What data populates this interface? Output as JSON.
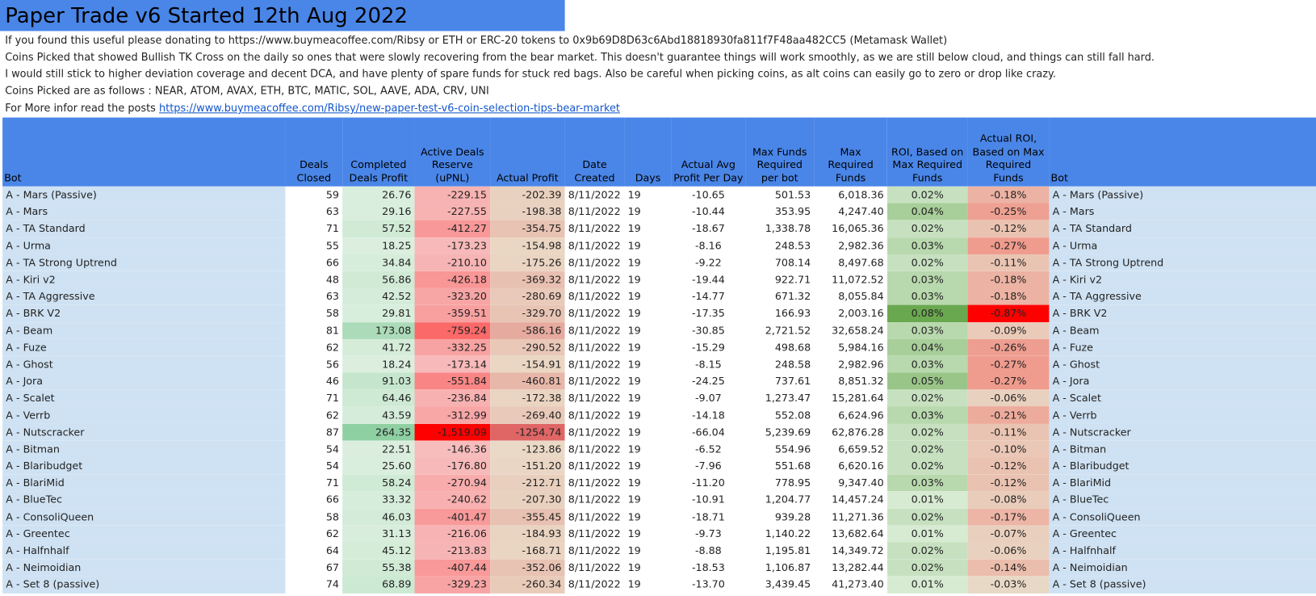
{
  "header": {
    "title": "Paper Trade v6 Started 12th Aug 2022"
  },
  "notes": [
    "If you  found this useful please donating to https://www.buymeacoffee.com/Ribsy or ETH or ERC-20 tokens to 0x9b69D8D63c6Abd18818930fa811f7F48aa482CC5 (Metamask Wallet)",
    "Coins Picked that showed Bullish TK Cross on the daily so ones that were slowly recovering from the bear market. This doesn't guarantee things will work smoothly, as we are still below cloud, and things can still fall hard.",
    "I would still stick to higher deviation coverage and decent DCA, and have plenty of spare funds for stuck red bags. Also be careful when picking coins, as alt coins can easily go to zero or drop like crazy.",
    "Coins Picked are as follows : NEAR, ATOM, AVAX, ETH, BTC, MATIC, SOL, AAVE, ADA, CRV, UNI"
  ],
  "more_info": {
    "text": "For More infor read the posts",
    "link": "https://www.buymeacoffee.com/Ribsy/new-paper-test-v6-coin-selection-tips-bear-market"
  },
  "table": {
    "columns": [
      "Bot",
      "Deals Closed",
      "Completed Deals Profit",
      "Active Deals Reserve (uPNL)",
      "Actual Profit",
      "Date Created",
      "Days",
      "Actual Avg Profit Per Day",
      "Max Funds Required per bot",
      "Max Required Funds",
      "ROI, Based on Max Required Funds",
      "Actual ROI, Based on Max Required Funds",
      "Bot"
    ],
    "rows": [
      [
        "A - Mars (Passive)",
        "59",
        "26.76",
        "-229.15",
        "-202.39",
        "8/11/2022",
        "19",
        "-10.65",
        "501.53",
        "6,018.36",
        "0.02%",
        "-0.18%",
        "A - Mars (Passive)"
      ],
      [
        "A - Mars",
        "63",
        "29.16",
        "-227.55",
        "-198.38",
        "8/11/2022",
        "19",
        "-10.44",
        "353.95",
        "4,247.40",
        "0.04%",
        "-0.25%",
        "A - Mars"
      ],
      [
        "A - TA Standard",
        "71",
        "57.52",
        "-412.27",
        "-354.75",
        "8/11/2022",
        "19",
        "-18.67",
        "1,338.78",
        "16,065.36",
        "0.02%",
        "-0.12%",
        "A - TA Standard"
      ],
      [
        "A - Urma",
        "55",
        "18.25",
        "-173.23",
        "-154.98",
        "8/11/2022",
        "19",
        "-8.16",
        "248.53",
        "2,982.36",
        "0.03%",
        "-0.27%",
        "A - Urma"
      ],
      [
        "A - TA Strong Uptrend",
        "66",
        "34.84",
        "-210.10",
        "-175.26",
        "8/11/2022",
        "19",
        "-9.22",
        "708.14",
        "8,497.68",
        "0.02%",
        "-0.11%",
        "A - TA Strong Uptrend"
      ],
      [
        "A - Kiri v2",
        "48",
        "56.86",
        "-426.18",
        "-369.32",
        "8/11/2022",
        "19",
        "-19.44",
        "922.71",
        "11,072.52",
        "0.03%",
        "-0.18%",
        "A - Kiri v2"
      ],
      [
        "A - TA Aggressive",
        "63",
        "42.52",
        "-323.20",
        "-280.69",
        "8/11/2022",
        "19",
        "-14.77",
        "671.32",
        "8,055.84",
        "0.03%",
        "-0.18%",
        "A - TA Aggressive"
      ],
      [
        "A - BRK V2",
        "58",
        "29.81",
        "-359.51",
        "-329.70",
        "8/11/2022",
        "19",
        "-17.35",
        "166.93",
        "2,003.16",
        "0.08%",
        "-0.87%",
        "A - BRK V2"
      ],
      [
        "A - Beam",
        "81",
        "173.08",
        "-759.24",
        "-586.16",
        "8/11/2022",
        "19",
        "-30.85",
        "2,721.52",
        "32,658.24",
        "0.03%",
        "-0.09%",
        "A - Beam"
      ],
      [
        "A - Fuze",
        "62",
        "41.72",
        "-332.25",
        "-290.52",
        "8/11/2022",
        "19",
        "-15.29",
        "498.68",
        "5,984.16",
        "0.04%",
        "-0.26%",
        "A - Fuze"
      ],
      [
        "A - Ghost",
        "56",
        "18.24",
        "-173.14",
        "-154.91",
        "8/11/2022",
        "19",
        "-8.15",
        "248.58",
        "2,982.96",
        "0.03%",
        "-0.27%",
        "A - Ghost"
      ],
      [
        "A - Jora",
        "46",
        "91.03",
        "-551.84",
        "-460.81",
        "8/11/2022",
        "19",
        "-24.25",
        "737.61",
        "8,851.32",
        "0.05%",
        "-0.27%",
        "A - Jora"
      ],
      [
        "A - Scalet",
        "71",
        "64.46",
        "-236.84",
        "-172.38",
        "8/11/2022",
        "19",
        "-9.07",
        "1,273.47",
        "15,281.64",
        "0.02%",
        "-0.06%",
        "A - Scalet"
      ],
      [
        "A - Verrb",
        "62",
        "43.59",
        "-312.99",
        "-269.40",
        "8/11/2022",
        "19",
        "-14.18",
        "552.08",
        "6,624.96",
        "0.03%",
        "-0.21%",
        "A - Verrb"
      ],
      [
        "A - Nutscracker",
        "87",
        "264.35",
        "-1,519.09",
        "-1254.74",
        "8/11/2022",
        "19",
        "-66.04",
        "5,239.69",
        "62,876.28",
        "0.02%",
        "-0.11%",
        "A - Nutscracker"
      ],
      [
        "A - Bitman",
        "54",
        "22.51",
        "-146.36",
        "-123.86",
        "8/11/2022",
        "19",
        "-6.52",
        "554.96",
        "6,659.52",
        "0.02%",
        "-0.10%",
        "A - Bitman"
      ],
      [
        "A - Blaribudget",
        "54",
        "25.60",
        "-176.80",
        "-151.20",
        "8/11/2022",
        "19",
        "-7.96",
        "551.68",
        "6,620.16",
        "0.02%",
        "-0.12%",
        "A - Blaribudget"
      ],
      [
        "A - BlariMid",
        "71",
        "58.24",
        "-270.94",
        "-212.71",
        "8/11/2022",
        "19",
        "-11.20",
        "778.95",
        "9,347.40",
        "0.03%",
        "-0.12%",
        "A - BlariMid"
      ],
      [
        "A - BlueTec",
        "66",
        "33.32",
        "-240.62",
        "-207.30",
        "8/11/2022",
        "19",
        "-10.91",
        "1,204.77",
        "14,457.24",
        "0.01%",
        "-0.08%",
        "A - BlueTec"
      ],
      [
        "A - ConsoliQueen",
        "58",
        "46.03",
        "-401.47",
        "-355.45",
        "8/11/2022",
        "19",
        "-18.71",
        "939.28",
        "11,271.36",
        "0.02%",
        "-0.17%",
        "A - ConsoliQueen"
      ],
      [
        "A - Greentec",
        "62",
        "31.13",
        "-216.06",
        "-184.93",
        "8/11/2022",
        "19",
        "-9.73",
        "1,140.22",
        "13,682.64",
        "0.01%",
        "-0.07%",
        "A - Greentec"
      ],
      [
        "A - Halfnhalf",
        "64",
        "45.12",
        "-213.83",
        "-168.71",
        "8/11/2022",
        "19",
        "-8.88",
        "1,195.81",
        "14,349.72",
        "0.02%",
        "-0.06%",
        "A - Halfnhalf"
      ],
      [
        "A - Neimoidian",
        "67",
        "55.38",
        "-407.44",
        "-352.06",
        "8/11/2022",
        "19",
        "-18.53",
        "1,106.87",
        "13,282.44",
        "0.02%",
        "-0.14%",
        "A - Neimoidian"
      ],
      [
        "A - Set 8 (passive)",
        "74",
        "68.89",
        "-329.23",
        "-260.34",
        "8/11/2022",
        "19",
        "-13.70",
        "3,439.45",
        "41,273.40",
        "0.01%",
        "-0.03%",
        "A - Set 8 (passive)"
      ]
    ]
  }
}
